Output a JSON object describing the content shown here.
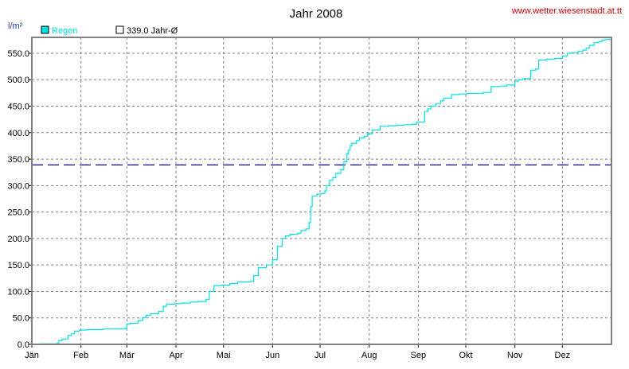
{
  "header": {
    "title": "Jahr 2008",
    "website": "www.wetter.wiesenstadt.at.tt"
  },
  "colors": {
    "regen": "#00e0e0",
    "average": "#000080",
    "grid": "#808080",
    "website": "#cc0000",
    "unit": "#2040a0"
  },
  "chart_data": {
    "type": "line",
    "ylabel": "l/m²",
    "ylim": [
      0,
      580
    ],
    "yticks": [
      0,
      50,
      100,
      150,
      200,
      250,
      300,
      350,
      400,
      450,
      500,
      550
    ],
    "ytick_labels": [
      "0.0",
      "50.0",
      "100.0",
      "150.0",
      "200.0",
      "250.0",
      "300.0",
      "350.0",
      "400.0",
      "450.0",
      "500.0",
      "550.0"
    ],
    "xlim": [
      0,
      366
    ],
    "months": [
      "Jän",
      "Feb",
      "Mär",
      "Apr",
      "Mai",
      "Jun",
      "Jul",
      "Aug",
      "Sep",
      "Okt",
      "Nov",
      "Dez"
    ],
    "month_start_days": [
      0,
      31,
      60,
      91,
      121,
      152,
      182,
      213,
      244,
      274,
      305,
      335
    ],
    "legend": [
      {
        "label": "Regen",
        "kind": "filled"
      },
      {
        "label": "339.0 Jahr-Ø",
        "kind": "hollow"
      }
    ],
    "average_value": 339.0,
    "series": [
      {
        "name": "Regen",
        "x": [
          0,
          5,
          16,
          17,
          19,
          23,
          25,
          27,
          30,
          35,
          45,
          59,
          60,
          62,
          67,
          70,
          72,
          75,
          80,
          83,
          85,
          90,
          95,
          100,
          105,
          110,
          112,
          115,
          120,
          125,
          130,
          138,
          140,
          143,
          148,
          150,
          152,
          155,
          158,
          160,
          163,
          168,
          170,
          173,
          175,
          176,
          177,
          180,
          183,
          185,
          186,
          188,
          190,
          192,
          195,
          197,
          199,
          200,
          201,
          202,
          205,
          207,
          210,
          212,
          215,
          220,
          225,
          230,
          235,
          240,
          243,
          248,
          250,
          252,
          255,
          258,
          260,
          265,
          270,
          275,
          285,
          290,
          295,
          300,
          305,
          307,
          310,
          315,
          318,
          320,
          325,
          330,
          335,
          338,
          340,
          345,
          348,
          350,
          352,
          355,
          358,
          360,
          362,
          366
        ],
        "values": [
          0,
          1,
          2,
          7,
          10,
          17,
          20,
          25,
          27,
          28,
          29,
          30,
          38,
          40,
          45,
          50,
          55,
          58,
          62,
          72,
          76,
          77,
          78,
          80,
          81,
          85,
          100,
          111,
          112,
          115,
          118,
          119,
          130,
          145,
          150,
          150,
          160,
          185,
          200,
          205,
          208,
          210,
          215,
          218,
          230,
          260,
          280,
          284,
          285,
          290,
          300,
          310,
          315,
          323,
          330,
          345,
          360,
          367,
          375,
          380,
          385,
          390,
          393,
          398,
          405,
          412,
          413,
          414,
          415,
          416,
          420,
          440,
          445,
          450,
          455,
          460,
          465,
          472,
          473,
          474,
          476,
          487,
          488,
          490,
          497,
          500,
          502,
          518,
          520,
          537,
          539,
          540,
          545,
          550,
          551,
          554,
          556,
          560,
          565,
          570,
          572,
          575,
          576,
          578
        ]
      }
    ]
  }
}
